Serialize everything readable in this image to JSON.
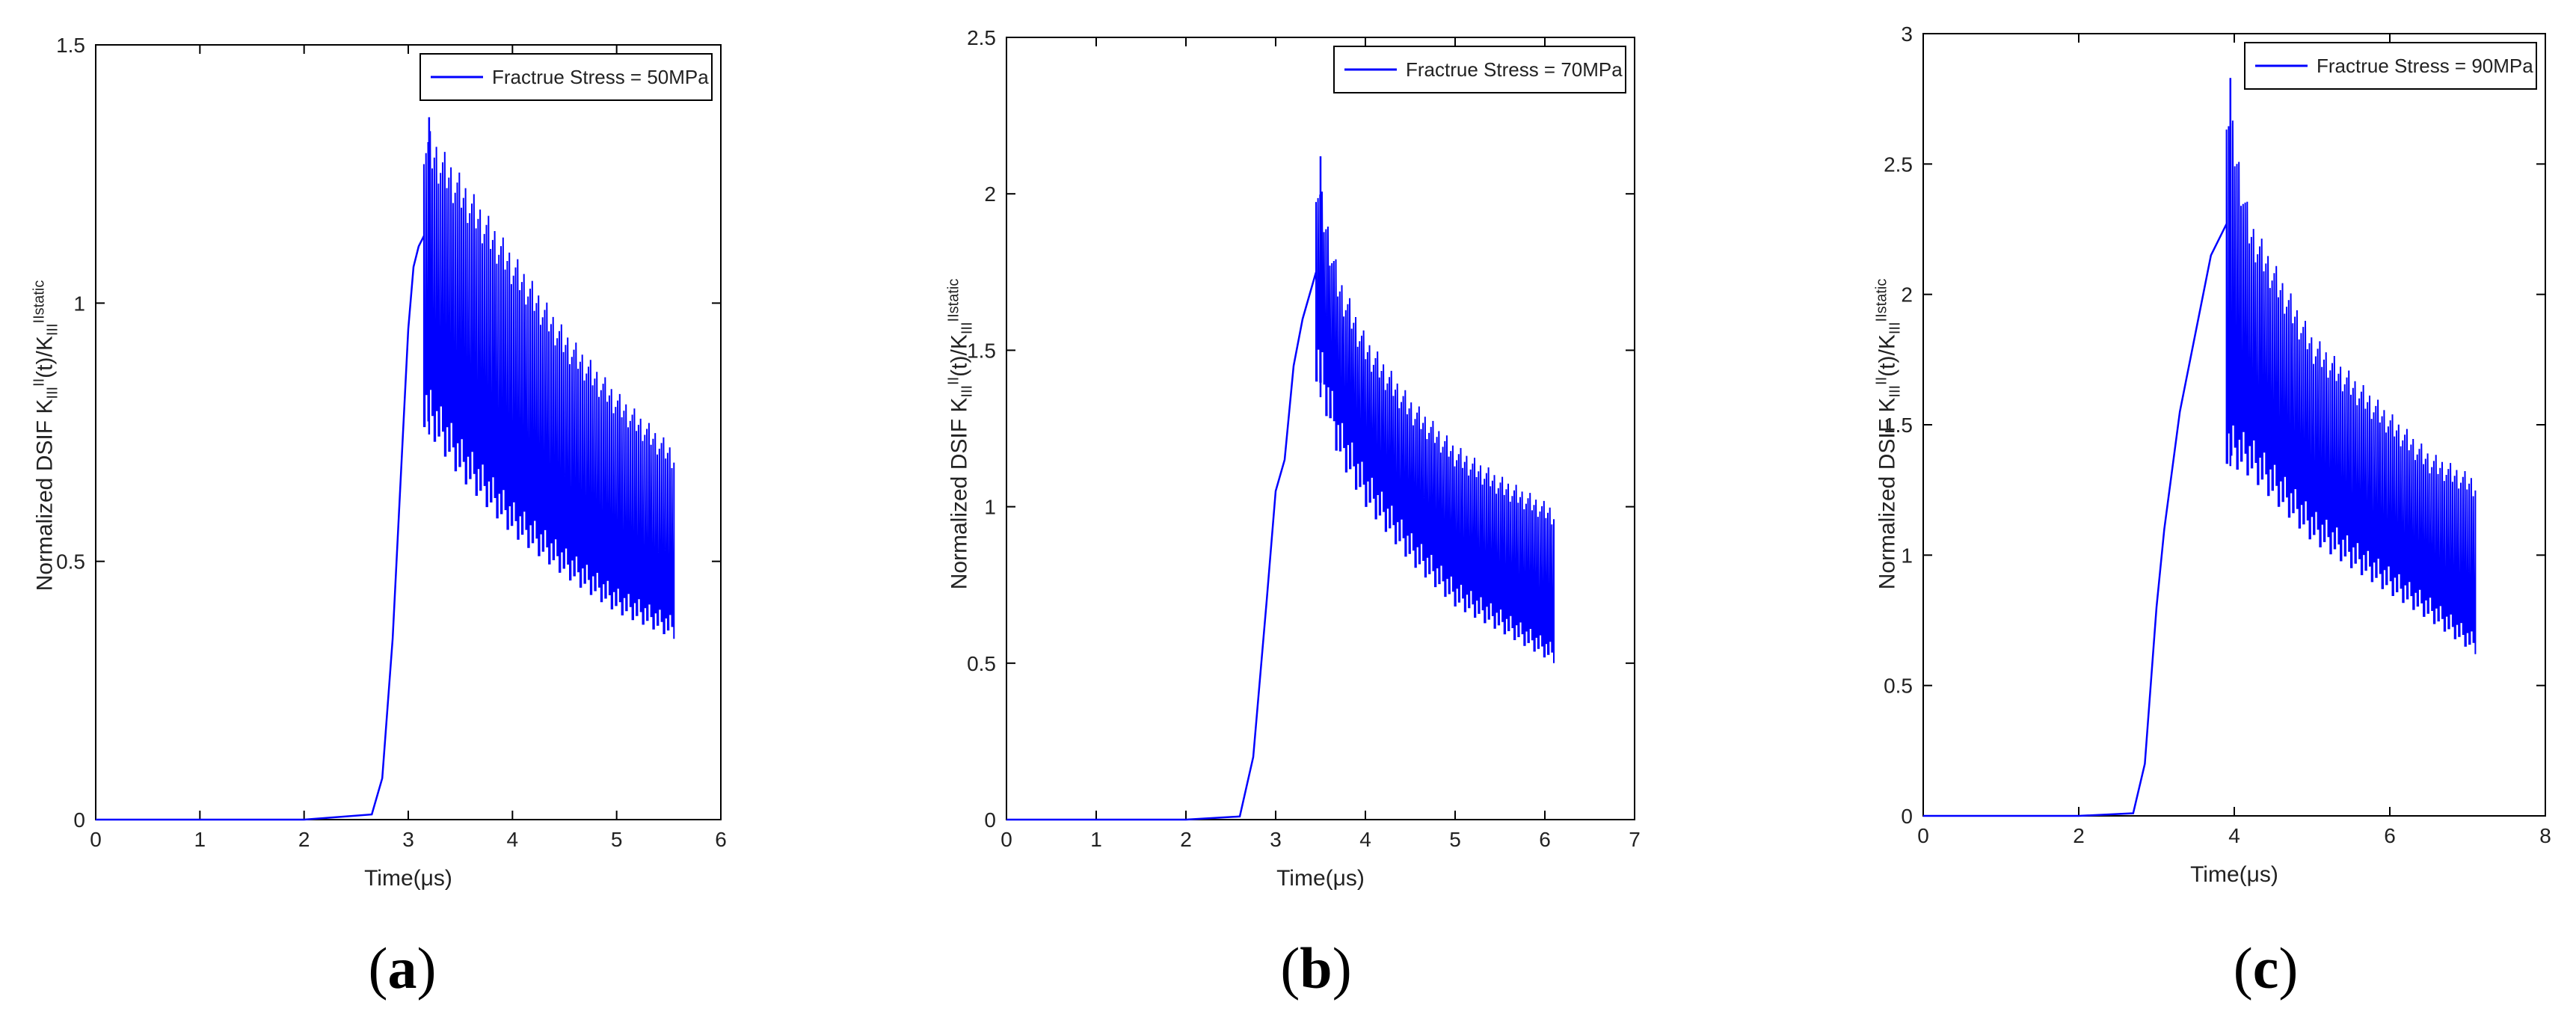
{
  "chart_data": [
    {
      "type": "line",
      "panel_label": "a",
      "xlabel": "Time(μs)",
      "ylabel": "Normalized DSIF K_III^II(t)/K_III^IIstatic",
      "ylabel_main": "Normalized DSIF K",
      "ylabel_sub": "III",
      "ylabel_sup": "II",
      "ylabel_mid": "(t)/K",
      "ylabel_sub2": "III",
      "ylabel_sup2": "IIstatic",
      "xlim": [
        0,
        6
      ],
      "ylim": [
        0,
        1.5
      ],
      "xticks": [
        "0",
        "1",
        "2",
        "3",
        "4",
        "5",
        "6"
      ],
      "yticks": [
        "0",
        "0.5",
        "1",
        "1.5"
      ],
      "xtick_values": [
        0,
        1,
        2,
        3,
        4,
        5,
        6
      ],
      "ytick_values": [
        0,
        0.5,
        1,
        1.5
      ],
      "series": [
        {
          "name": "Fractrue Stress = 50MPa",
          "color": "#0000ff",
          "rise": [
            [
              0,
              0
            ],
            [
              2.0,
              0
            ],
            [
              2.65,
              0.01
            ],
            [
              2.75,
              0.08
            ],
            [
              2.85,
              0.35
            ],
            [
              2.95,
              0.75
            ],
            [
              3.0,
              0.95
            ],
            [
              3.05,
              1.07
            ],
            [
              3.1,
              1.11
            ],
            [
              3.15,
              1.13
            ]
          ],
          "oscillation": {
            "x_start": 3.15,
            "x_end": 5.55,
            "upper": [
              [
                3.15,
                1.35
              ],
              [
                3.5,
                1.25
              ],
              [
                4.0,
                1.1
              ],
              [
                4.5,
                0.95
              ],
              [
                5.0,
                0.83
              ],
              [
                5.55,
                0.72
              ]
            ],
            "lower": [
              [
                3.15,
                0.76
              ],
              [
                3.5,
                0.66
              ],
              [
                4.0,
                0.55
              ],
              [
                4.5,
                0.47
              ],
              [
                5.0,
                0.4
              ],
              [
                5.55,
                0.35
              ]
            ],
            "peak": [
              3.2,
              1.36
            ]
          }
        }
      ]
    },
    {
      "type": "line",
      "panel_label": "b",
      "xlabel": "Time(μs)",
      "ylabel": "Normalized DSIF K_III^II(t)/K_III^IIstatic",
      "ylabel_main": "Normalized DSIF K",
      "ylabel_sub": "III",
      "ylabel_sup": "II",
      "ylabel_mid": "(t)/K",
      "ylabel_sub2": "III",
      "ylabel_sup2": "IIstatic",
      "xlim": [
        0,
        7
      ],
      "ylim": [
        0,
        2.5
      ],
      "xticks": [
        "0",
        "1",
        "2",
        "3",
        "4",
        "5",
        "6",
        "7"
      ],
      "yticks": [
        "0",
        "0.5",
        "1",
        "1.5",
        "2",
        "2.5"
      ],
      "xtick_values": [
        0,
        1,
        2,
        3,
        4,
        5,
        6,
        7
      ],
      "ytick_values": [
        0,
        0.5,
        1,
        1.5,
        2,
        2.5
      ],
      "series": [
        {
          "name": "Fractrue Stress = 70MPa",
          "color": "#0000ff",
          "rise": [
            [
              0,
              0
            ],
            [
              2.0,
              0
            ],
            [
              2.6,
              0.01
            ],
            [
              2.75,
              0.2
            ],
            [
              2.9,
              0.7
            ],
            [
              3.0,
              1.05
            ],
            [
              3.1,
              1.15
            ],
            [
              3.2,
              1.45
            ],
            [
              3.3,
              1.6
            ],
            [
              3.45,
              1.75
            ]
          ],
          "oscillation": {
            "x_start": 3.45,
            "x_end": 6.1,
            "upper": [
              [
                3.45,
                2.1
              ],
              [
                3.7,
                1.75
              ],
              [
                4.0,
                1.55
              ],
              [
                4.5,
                1.35
              ],
              [
                5.0,
                1.2
              ],
              [
                5.5,
                1.1
              ],
              [
                6.1,
                1.0
              ]
            ],
            "lower": [
              [
                3.45,
                1.4
              ],
              [
                3.7,
                1.15
              ],
              [
                4.0,
                1.0
              ],
              [
                4.5,
                0.82
              ],
              [
                5.0,
                0.68
              ],
              [
                5.5,
                0.6
              ],
              [
                6.1,
                0.5
              ]
            ],
            "peak": [
              3.5,
              2.12
            ]
          }
        }
      ]
    },
    {
      "type": "line",
      "panel_label": "c",
      "xlabel": "Time(μs)",
      "ylabel": "Normalized DSIF K_III^II(t)/K_III^IIstatic",
      "ylabel_main": "Normalized DSIF K",
      "ylabel_sub": "III",
      "ylabel_sup": "II",
      "ylabel_mid": "(t)/K",
      "ylabel_sub2": "III",
      "ylabel_sup2": "IIstatic",
      "xlim": [
        0,
        8
      ],
      "ylim": [
        0,
        3
      ],
      "xticks": [
        "0",
        "2",
        "4",
        "6",
        "8"
      ],
      "yticks": [
        "0",
        "0.5",
        "1",
        "1.5",
        "2",
        "2.5",
        "3"
      ],
      "xtick_values": [
        0,
        2,
        4,
        6,
        8
      ],
      "ytick_values": [
        0,
        0.5,
        1,
        1.5,
        2,
        2.5,
        3
      ],
      "series": [
        {
          "name": "Fractrue Stress = 90MPa",
          "color": "#0000ff",
          "rise": [
            [
              0,
              0
            ],
            [
              2.0,
              0
            ],
            [
              2.7,
              0.01
            ],
            [
              2.85,
              0.2
            ],
            [
              3.0,
              0.8
            ],
            [
              3.1,
              1.1
            ],
            [
              3.3,
              1.55
            ],
            [
              3.5,
              1.85
            ],
            [
              3.7,
              2.15
            ],
            [
              3.9,
              2.27
            ]
          ],
          "oscillation": {
            "x_start": 3.9,
            "x_end": 7.1,
            "upper": [
              [
                3.9,
                2.8
              ],
              [
                4.2,
                2.3
              ],
              [
                5.0,
                1.85
              ],
              [
                6.0,
                1.55
              ],
              [
                6.5,
                1.4
              ],
              [
                7.1,
                1.3
              ]
            ],
            "lower": [
              [
                3.9,
                1.35
              ],
              [
                4.2,
                1.3
              ],
              [
                5.0,
                1.05
              ],
              [
                6.0,
                0.85
              ],
              [
                6.5,
                0.75
              ],
              [
                7.1,
                0.62
              ]
            ],
            "peak": [
              3.95,
              2.83
            ]
          }
        }
      ]
    }
  ]
}
